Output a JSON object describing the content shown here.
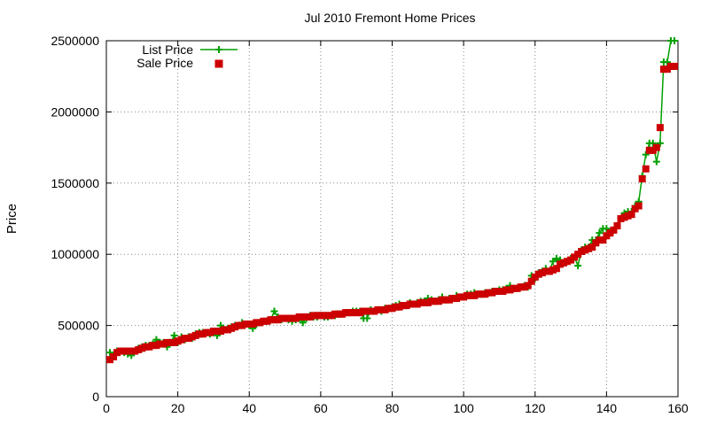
{
  "chart_data": {
    "type": "line",
    "title": "Jul 2010 Fremont Home Prices",
    "xlabel": "",
    "ylabel": "Price",
    "xlim": [
      0,
      160
    ],
    "ylim": [
      0,
      2500000
    ],
    "xticks": [
      0,
      20,
      40,
      60,
      80,
      100,
      120,
      140,
      160
    ],
    "yticks": [
      0,
      500000,
      1000000,
      1500000,
      2000000,
      2500000
    ],
    "grid": true,
    "legend_position": "top-left",
    "series": [
      {
        "name": "List Price",
        "style": "line+cross",
        "color": "#00a000",
        "x": [
          1,
          2,
          3,
          4,
          5,
          6,
          7,
          8,
          9,
          10,
          11,
          12,
          13,
          14,
          15,
          16,
          17,
          18,
          19,
          20,
          21,
          22,
          23,
          24,
          25,
          26,
          27,
          28,
          29,
          30,
          31,
          32,
          33,
          34,
          35,
          36,
          37,
          38,
          39,
          40,
          41,
          42,
          43,
          44,
          45,
          46,
          47,
          48,
          49,
          50,
          51,
          52,
          53,
          54,
          55,
          56,
          57,
          58,
          59,
          60,
          61,
          62,
          63,
          64,
          65,
          66,
          67,
          68,
          69,
          70,
          71,
          72,
          73,
          74,
          75,
          76,
          77,
          78,
          79,
          80,
          81,
          82,
          83,
          84,
          85,
          86,
          87,
          88,
          89,
          90,
          91,
          92,
          93,
          94,
          95,
          96,
          97,
          98,
          99,
          100,
          101,
          102,
          103,
          104,
          105,
          106,
          107,
          108,
          109,
          110,
          111,
          112,
          113,
          114,
          115,
          116,
          117,
          118,
          119,
          120,
          121,
          122,
          123,
          124,
          125,
          126,
          127,
          128,
          129,
          130,
          131,
          132,
          133,
          134,
          135,
          136,
          137,
          138,
          139,
          140,
          141,
          142,
          143,
          144,
          145,
          146,
          147,
          148,
          149,
          150,
          151,
          152,
          153,
          154,
          155,
          156,
          157,
          158,
          159
        ],
        "values": [
          310000,
          290000,
          320000,
          320000,
          310000,
          300000,
          290000,
          320000,
          340000,
          350000,
          360000,
          360000,
          370000,
          400000,
          380000,
          380000,
          350000,
          380000,
          430000,
          380000,
          420000,
          400000,
          420000,
          410000,
          440000,
          450000,
          450000,
          450000,
          440000,
          450000,
          430000,
          500000,
          470000,
          480000,
          490000,
          500000,
          500000,
          520000,
          510000,
          500000,
          480000,
          510000,
          520000,
          530000,
          530000,
          540000,
          600000,
          560000,
          540000,
          550000,
          540000,
          530000,
          540000,
          550000,
          520000,
          550000,
          570000,
          560000,
          560000,
          570000,
          560000,
          560000,
          570000,
          570000,
          580000,
          580000,
          590000,
          590000,
          600000,
          600000,
          600000,
          550000,
          550000,
          610000,
          600000,
          610000,
          600000,
          620000,
          620000,
          630000,
          640000,
          650000,
          640000,
          640000,
          660000,
          650000,
          660000,
          670000,
          670000,
          690000,
          680000,
          670000,
          680000,
          700000,
          680000,
          690000,
          690000,
          710000,
          700000,
          700000,
          720000,
          720000,
          730000,
          720000,
          720000,
          730000,
          730000,
          740000,
          740000,
          750000,
          750000,
          760000,
          780000,
          760000,
          760000,
          770000,
          780000,
          770000,
          850000,
          830000,
          870000,
          880000,
          900000,
          880000,
          950000,
          970000,
          960000,
          940000,
          950000,
          970000,
          980000,
          920000,
          1030000,
          1050000,
          1050000,
          1100000,
          1100000,
          1150000,
          1180000,
          1180000,
          1150000,
          1170000,
          1200000,
          1250000,
          1290000,
          1300000,
          1300000,
          1340000,
          1370000,
          1550000,
          1700000,
          1780000,
          1780000,
          1650000,
          1780000,
          2350000,
          2350000,
          2500000,
          2500000
        ]
      },
      {
        "name": "Sale Price",
        "style": "square",
        "color": "#cc0000",
        "x": [
          1,
          2,
          3,
          4,
          5,
          6,
          7,
          8,
          9,
          10,
          11,
          12,
          13,
          14,
          15,
          16,
          17,
          18,
          19,
          20,
          21,
          22,
          23,
          24,
          25,
          26,
          27,
          28,
          29,
          30,
          31,
          32,
          33,
          34,
          35,
          36,
          37,
          38,
          39,
          40,
          41,
          42,
          43,
          44,
          45,
          46,
          47,
          48,
          49,
          50,
          51,
          52,
          53,
          54,
          55,
          56,
          57,
          58,
          59,
          60,
          61,
          62,
          63,
          64,
          65,
          66,
          67,
          68,
          69,
          70,
          71,
          72,
          73,
          74,
          75,
          76,
          77,
          78,
          79,
          80,
          81,
          82,
          83,
          84,
          85,
          86,
          87,
          88,
          89,
          90,
          91,
          92,
          93,
          94,
          95,
          96,
          97,
          98,
          99,
          100,
          101,
          102,
          103,
          104,
          105,
          106,
          107,
          108,
          109,
          110,
          111,
          112,
          113,
          114,
          115,
          116,
          117,
          118,
          119,
          120,
          121,
          122,
          123,
          124,
          125,
          126,
          127,
          128,
          129,
          130,
          131,
          132,
          133,
          134,
          135,
          136,
          137,
          138,
          139,
          140,
          141,
          142,
          143,
          144,
          145,
          146,
          147,
          148,
          149,
          150,
          151,
          152,
          153,
          154,
          155,
          156,
          157,
          158,
          159
        ],
        "values": [
          260000,
          280000,
          310000,
          320000,
          320000,
          320000,
          320000,
          320000,
          330000,
          340000,
          350000,
          350000,
          360000,
          360000,
          370000,
          370000,
          380000,
          380000,
          380000,
          390000,
          400000,
          410000,
          410000,
          420000,
          430000,
          440000,
          440000,
          450000,
          450000,
          460000,
          460000,
          460000,
          470000,
          470000,
          480000,
          490000,
          500000,
          500000,
          510000,
          510000,
          510000,
          520000,
          520000,
          530000,
          530000,
          540000,
          540000,
          540000,
          550000,
          550000,
          550000,
          550000,
          550000,
          560000,
          560000,
          560000,
          560000,
          570000,
          570000,
          570000,
          570000,
          570000,
          570000,
          580000,
          580000,
          580000,
          590000,
          590000,
          590000,
          590000,
          590000,
          600000,
          600000,
          600000,
          600000,
          610000,
          610000,
          610000,
          620000,
          620000,
          630000,
          630000,
          640000,
          640000,
          650000,
          650000,
          650000,
          660000,
          660000,
          660000,
          670000,
          670000,
          670000,
          680000,
          680000,
          680000,
          690000,
          690000,
          700000,
          700000,
          710000,
          710000,
          710000,
          720000,
          720000,
          720000,
          730000,
          730000,
          740000,
          740000,
          740000,
          750000,
          750000,
          760000,
          760000,
          770000,
          770000,
          780000,
          810000,
          840000,
          860000,
          870000,
          880000,
          880000,
          890000,
          900000,
          930000,
          940000,
          950000,
          960000,
          980000,
          1000000,
          1020000,
          1030000,
          1040000,
          1050000,
          1080000,
          1100000,
          1100000,
          1130000,
          1150000,
          1170000,
          1200000,
          1250000,
          1260000,
          1270000,
          1280000,
          1320000,
          1340000,
          1530000,
          1600000,
          1730000,
          1730000,
          1750000,
          1890000,
          2300000,
          2300000,
          2320000,
          2320000
        ]
      }
    ]
  }
}
